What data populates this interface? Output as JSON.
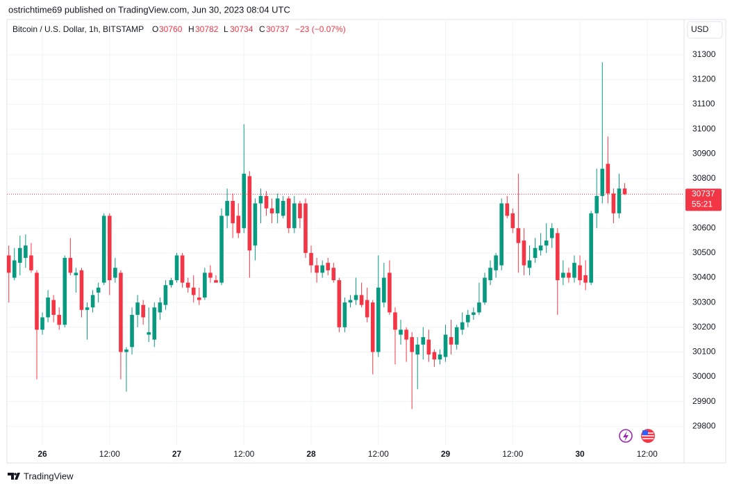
{
  "header": {
    "publisher": "ostrichtime69 published on TradingView.com, Jun 30, 2023 08:04 UTC",
    "symbol": "Bitcoin / U.S. Dollar, 1h, BITSTAMP",
    "change": "−23 (−0.07%)",
    "currency": "USD",
    "countdown": "55:21",
    "brand": "TradingView"
  },
  "chart_data": {
    "type": "candlestick",
    "up_color": "#089981",
    "down_color": "#f23645",
    "grid": true,
    "legend_labels": [
      "O",
      "H",
      "L",
      "C"
    ],
    "xlim": [
      -6.33,
      114.6
    ],
    "xticks": [
      {
        "value": 0,
        "label": "26"
      },
      {
        "value": 12,
        "label": "12:00"
      },
      {
        "value": 24,
        "label": "27"
      },
      {
        "value": 36,
        "label": "12:00"
      },
      {
        "value": 48,
        "label": "28"
      },
      {
        "value": 60,
        "label": "12:00"
      },
      {
        "value": 72,
        "label": "29"
      },
      {
        "value": 84,
        "label": "12:00"
      },
      {
        "value": 96,
        "label": "30"
      },
      {
        "value": 108,
        "label": "12:00"
      }
    ],
    "ylim": [
      29725,
      31437
    ],
    "yticks": [
      29800,
      29900,
      30000,
      30100,
      30200,
      30300,
      30400,
      30500,
      30600,
      30700,
      30800,
      30900,
      31000,
      31100,
      31200,
      31300
    ],
    "x": [
      -6,
      -5,
      -4,
      -3,
      -2,
      -1,
      0,
      1,
      2,
      3,
      4,
      5,
      6,
      7,
      8,
      9,
      10,
      11,
      12,
      13,
      14,
      15,
      16,
      17,
      18,
      19,
      20,
      21,
      22,
      23,
      24,
      25,
      26,
      27,
      28,
      29,
      30,
      31,
      32,
      33,
      34,
      35,
      36,
      37,
      38,
      39,
      40,
      41,
      42,
      43,
      44,
      45,
      46,
      47,
      48,
      49,
      50,
      51,
      52,
      53,
      54,
      55,
      56,
      57,
      58,
      59,
      60,
      61,
      62,
      63,
      64,
      65,
      66,
      67,
      68,
      69,
      70,
      71,
      72,
      73,
      74,
      75,
      76,
      77,
      78,
      79,
      80,
      81,
      82,
      83,
      84,
      85,
      86,
      87,
      88,
      89,
      90,
      91,
      92,
      93,
      94,
      95,
      96,
      97,
      98,
      99,
      100,
      101,
      102,
      103,
      104
    ],
    "open": [
      30490,
      30400,
      30460,
      30480,
      30490,
      30420,
      30190,
      30240,
      30310,
      30250,
      30210,
      30480,
      30410,
      30430,
      30270,
      30280,
      30340,
      30380,
      30650,
      30400,
      30420,
      30100,
      30120,
      30250,
      30290,
      30170,
      30150,
      30260,
      30290,
      30370,
      30390,
      30490,
      30380,
      30360,
      30320,
      30320,
      30420,
      30390,
      30380,
      30650,
      30710,
      30650,
      30600,
      30810,
      30530,
      30700,
      30730,
      30680,
      30660,
      30650,
      30720,
      30600,
      30700,
      30700,
      30500,
      30450,
      30420,
      30460,
      30440,
      30390,
      30200,
      30300,
      30310,
      30330,
      30310,
      30300,
      30100,
      30300,
      30420,
      30260,
      30170,
      30190,
      30160,
      30090,
      30130,
      30150,
      30100,
      30070,
      30080,
      30160,
      30130,
      30190,
      30220,
      30250,
      30260,
      30300,
      30390,
      30430,
      30450,
      30700,
      30660,
      30600,
      30550,
      30440,
      30480,
      30510,
      30530,
      30560,
      30580,
      30400,
      30420,
      30400,
      30450,
      30410,
      30380,
      30660,
      30730,
      30860,
      30740,
      30660,
      30760
    ],
    "high": [
      30530,
      30520,
      30570,
      30575,
      30540,
      30430,
      30260,
      30350,
      30330,
      30280,
      30490,
      30560,
      30440,
      30440,
      30300,
      30350,
      30380,
      30660,
      30660,
      30480,
      30430,
      30120,
      30280,
      30330,
      30310,
      30280,
      30300,
      30320,
      30390,
      30400,
      30500,
      30500,
      30400,
      30410,
      30360,
      30440,
      30450,
      30410,
      30680,
      30760,
      30740,
      30700,
      31020,
      30830,
      30720,
      30760,
      30750,
      30720,
      30740,
      30730,
      30730,
      30730,
      30710,
      30720,
      30530,
      30480,
      30470,
      30480,
      30460,
      30400,
      30320,
      30330,
      30400,
      30380,
      30360,
      30310,
      30490,
      30460,
      30470,
      30280,
      30230,
      30200,
      30180,
      30160,
      30200,
      30190,
      30110,
      30110,
      30210,
      30230,
      30210,
      30260,
      30270,
      30280,
      30380,
      30420,
      30470,
      30500,
      30720,
      30730,
      30680,
      30820,
      30600,
      30530,
      30560,
      30580,
      30620,
      30620,
      30600,
      30470,
      30440,
      30490,
      30490,
      30470,
      30670,
      30840,
      31270,
      30970,
      30760,
      30820,
      30782
    ],
    "low": [
      30300,
      30390,
      30410,
      30440,
      30420,
      29990,
      30170,
      30220,
      30220,
      30190,
      30200,
      30410,
      30340,
      30240,
      30150,
      30260,
      30300,
      30370,
      30330,
      30380,
      29990,
      29940,
      30090,
      30200,
      30210,
      30140,
      30120,
      30230,
      30270,
      30360,
      30380,
      30360,
      30340,
      30300,
      30290,
      30310,
      30380,
      30380,
      30370,
      30600,
      30560,
      30560,
      30580,
      30400,
      30470,
      30620,
      30650,
      30620,
      30620,
      30640,
      30580,
      30580,
      30600,
      30480,
      30420,
      30380,
      30400,
      30410,
      30380,
      30180,
      30180,
      30280,
      30290,
      30280,
      30220,
      30010,
      30080,
      30280,
      30250,
      30050,
      30130,
      30060,
      29870,
      29950,
      30070,
      30060,
      30040,
      30050,
      30060,
      30090,
      30110,
      30170,
      30200,
      30230,
      30250,
      30290,
      30370,
      30400,
      30430,
      30640,
      30580,
      30420,
      30410,
      30410,
      30460,
      30490,
      30500,
      30520,
      30250,
      30370,
      30380,
      30380,
      30370,
      30350,
      30370,
      30600,
      30700,
      30700,
      30620,
      30640,
      30734
    ],
    "close": [
      30420,
      30470,
      30520,
      30530,
      30430,
      30190,
      30240,
      30320,
      30250,
      30210,
      30480,
      30420,
      30420,
      30270,
      30280,
      30330,
      30360,
      30650,
      30390,
      30440,
      30100,
      30110,
      30250,
      30300,
      30240,
      30180,
      30280,
      30300,
      30370,
      30390,
      30490,
      30380,
      30360,
      30330,
      30310,
      30420,
      30400,
      30380,
      30650,
      30710,
      30620,
      30580,
      30820,
      30510,
      30700,
      30730,
      30680,
      30660,
      30720,
      30710,
      30600,
      30700,
      30640,
      30500,
      30450,
      30420,
      30450,
      30430,
      30390,
      30200,
      30300,
      30310,
      30330,
      30290,
      30240,
      30100,
      30360,
      30400,
      30260,
      30190,
      30190,
      30150,
      30100,
      30130,
      30160,
      30090,
      30070,
      30090,
      30170,
      30130,
      30200,
      30220,
      30250,
      30260,
      30300,
      30400,
      30440,
      30490,
      30700,
      30650,
      30600,
      30540,
      30450,
      30470,
      30520,
      30530,
      30550,
      30600,
      30390,
      30420,
      30400,
      30460,
      30390,
      30380,
      30660,
      30730,
      30840,
      30740,
      30660,
      30760,
      30737
    ]
  }
}
